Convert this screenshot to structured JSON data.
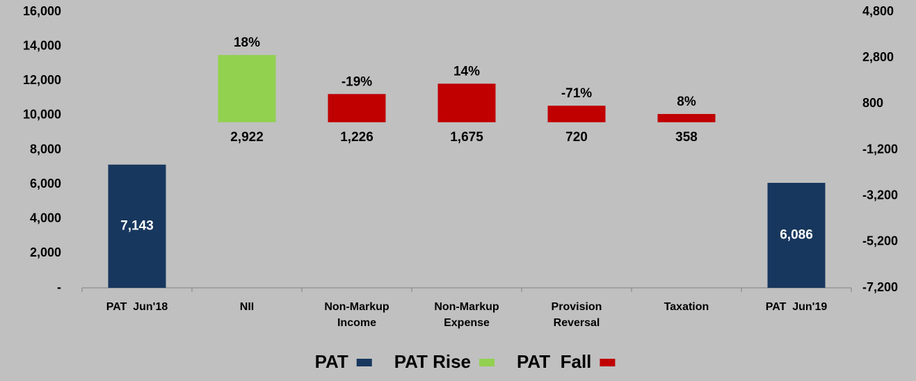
{
  "chart_data": {
    "type": "waterfall",
    "categories": [
      [
        "PAT  Jun'18"
      ],
      [
        "NII"
      ],
      [
        "Non-Markup",
        "Income"
      ],
      [
        "Non-Markup",
        "Expense"
      ],
      [
        "Provision",
        "Reversal"
      ],
      [
        "Taxation"
      ],
      [
        "PAT  Jun'19"
      ]
    ],
    "series": [
      {
        "name": "PAT",
        "color": "#17375e",
        "values": [
          7143,
          null,
          null,
          null,
          null,
          null,
          6086
        ],
        "value_labels": [
          "7,143",
          null,
          null,
          null,
          null,
          null,
          "6,086"
        ]
      },
      {
        "name": "PAT Rise",
        "color": "#92d050",
        "axis": "y2",
        "values": [
          null,
          2922,
          null,
          null,
          null,
          null,
          null
        ],
        "value_labels": [
          null,
          "2,922",
          null,
          null,
          null,
          null,
          null
        ],
        "percent_labels": [
          null,
          "18%",
          null,
          null,
          null,
          null,
          null
        ]
      },
      {
        "name": "PAT  Fall",
        "color": "#c00000",
        "axis": "y2",
        "values": [
          null,
          null,
          1226,
          1675,
          720,
          358,
          null
        ],
        "value_labels": [
          null,
          null,
          "1,226",
          "1,675",
          "720",
          "358",
          null
        ],
        "percent_labels": [
          null,
          null,
          "-19%",
          "14%",
          "-71%",
          "8%",
          null
        ]
      }
    ],
    "ylim": [
      0,
      16000
    ],
    "yticks": [
      {
        "value": 0,
        "label": "-"
      },
      {
        "value": 2000,
        "label": "2,000"
      },
      {
        "value": 4000,
        "label": "4,000"
      },
      {
        "value": 6000,
        "label": "6,000"
      },
      {
        "value": 8000,
        "label": "8,000"
      },
      {
        "value": 10000,
        "label": "10,000"
      },
      {
        "value": 12000,
        "label": "12,000"
      },
      {
        "value": 14000,
        "label": "14,000"
      },
      {
        "value": 16000,
        "label": "16,000"
      }
    ],
    "y2lim": [
      -7200,
      4800
    ],
    "y2ticks": [
      {
        "value": -7200,
        "label": "-7,200"
      },
      {
        "value": -5200,
        "label": "-5,200"
      },
      {
        "value": -3200,
        "label": "-3,200"
      },
      {
        "value": -1200,
        "label": "-1,200"
      },
      800,
      {
        "value": 2800,
        "label": "2,800"
      },
      {
        "value": 4800,
        "label": "4,800"
      }
    ],
    "legend": "bottom"
  }
}
